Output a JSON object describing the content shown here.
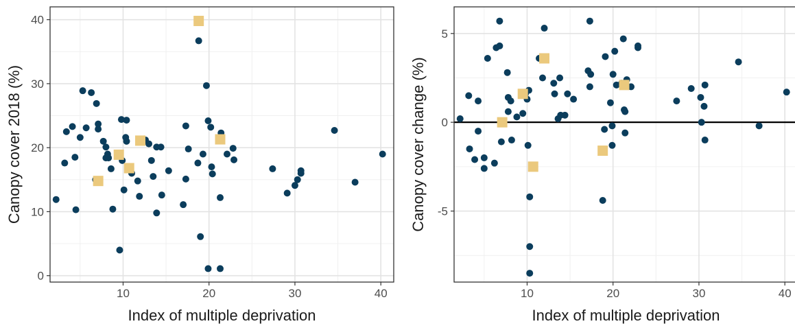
{
  "chart_data": [
    {
      "type": "scatter",
      "xlabel": "Index of multiple deprivation",
      "ylabel": "Canopy cover 2018 (%)",
      "xlim": [
        1.5,
        41.5
      ],
      "ylim": [
        -1,
        42
      ],
      "xticks": [
        10,
        20,
        30,
        40
      ],
      "yticks": [
        0,
        10,
        20,
        30,
        40
      ],
      "grid": true,
      "hline": null,
      "series": [
        {
          "marker": "circle",
          "color": "#0b3d5c",
          "points": [
            [
              2.2,
              11.9
            ],
            [
              3.2,
              17.6
            ],
            [
              3.4,
              22.5
            ],
            [
              4.1,
              23.3
            ],
            [
              4.4,
              18.5
            ],
            [
              4.5,
              10.3
            ],
            [
              5.0,
              21.6
            ],
            [
              5.3,
              28.9
            ],
            [
              5.7,
              23.1
            ],
            [
              6.3,
              28.6
            ],
            [
              6.8,
              15.0
            ],
            [
              6.9,
              26.9
            ],
            [
              7.1,
              23.7
            ],
            [
              7.1,
              22.9
            ],
            [
              7.7,
              21.0
            ],
            [
              8.0,
              20.1
            ],
            [
              8.0,
              18.4
            ],
            [
              8.2,
              19.0
            ],
            [
              8.3,
              18.4
            ],
            [
              8.6,
              16.7
            ],
            [
              8.8,
              10.4
            ],
            [
              9.8,
              24.4
            ],
            [
              9.9,
              18.0
            ],
            [
              10.3,
              21.6
            ],
            [
              10.4,
              21.0
            ],
            [
              10.4,
              24.3
            ],
            [
              10.1,
              13.4
            ],
            [
              9.6,
              4.0
            ],
            [
              11.0,
              16.0
            ],
            [
              11.7,
              14.8
            ],
            [
              11.9,
              12.4
            ],
            [
              12.6,
              21.2
            ],
            [
              13.0,
              20.6
            ],
            [
              13.3,
              18.0
            ],
            [
              13.5,
              15.5
            ],
            [
              13.9,
              9.8
            ],
            [
              13.9,
              20.1
            ],
            [
              14.4,
              20.1
            ],
            [
              14.5,
              12.6
            ],
            [
              15.3,
              16.4
            ],
            [
              17.0,
              11.1
            ],
            [
              17.3,
              23.4
            ],
            [
              17.3,
              15.1
            ],
            [
              17.6,
              19.8
            ],
            [
              18.7,
              17.6
            ],
            [
              18.8,
              36.7
            ],
            [
              19.0,
              6.1
            ],
            [
              19.3,
              19.0
            ],
            [
              19.7,
              29.7
            ],
            [
              19.9,
              24.2
            ],
            [
              20.2,
              23.2
            ],
            [
              20.3,
              17.0
            ],
            [
              20.4,
              15.9
            ],
            [
              19.9,
              1.1
            ],
            [
              21.3,
              1.1
            ],
            [
              21.2,
              21.5
            ],
            [
              21.3,
              12.2
            ],
            [
              21.4,
              22.3
            ],
            [
              22.1,
              19.0
            ],
            [
              22.8,
              19.9
            ],
            [
              22.9,
              18.1
            ],
            [
              27.4,
              16.7
            ],
            [
              29.1,
              12.9
            ],
            [
              30.0,
              14.1
            ],
            [
              30.3,
              15.0
            ],
            [
              30.7,
              16.0
            ],
            [
              30.7,
              16.4
            ],
            [
              34.6,
              22.7
            ],
            [
              37.0,
              14.6
            ],
            [
              40.2,
              19.0
            ]
          ]
        },
        {
          "marker": "square",
          "color": "#ebc97d",
          "points": [
            [
              7.1,
              14.8
            ],
            [
              9.5,
              18.9
            ],
            [
              10.7,
              16.8
            ],
            [
              12.0,
              21.1
            ],
            [
              18.8,
              39.8
            ],
            [
              21.3,
              21.3
            ]
          ]
        }
      ]
    },
    {
      "type": "scatter",
      "xlabel": "Index of multiple deprivation",
      "ylabel": "Canopy cover change (%)",
      "xlim": [
        1.5,
        41.5
      ],
      "ylim": [
        -9.0,
        6.5
      ],
      "xticks": [
        10,
        20,
        30,
        40
      ],
      "yticks": [
        -5,
        0,
        5
      ],
      "grid": true,
      "hline": 0,
      "series": [
        {
          "marker": "circle",
          "color": "#0b3d5c",
          "points": [
            [
              2.2,
              0.2
            ],
            [
              3.2,
              1.5
            ],
            [
              3.3,
              -1.5
            ],
            [
              3.9,
              -2.1
            ],
            [
              4.3,
              -0.5
            ],
            [
              4.3,
              1.2
            ],
            [
              5.0,
              -2.6
            ],
            [
              5.0,
              -2.0
            ],
            [
              5.4,
              3.6
            ],
            [
              6.2,
              -2.3
            ],
            [
              6.4,
              4.2
            ],
            [
              6.8,
              4.3
            ],
            [
              6.8,
              5.7
            ],
            [
              7.0,
              -1.1
            ],
            [
              7.7,
              2.8
            ],
            [
              7.8,
              1.4
            ],
            [
              7.8,
              0.6
            ],
            [
              8.1,
              1.2
            ],
            [
              8.2,
              -1.0
            ],
            [
              8.8,
              0.3
            ],
            [
              9.5,
              0.5
            ],
            [
              9.8,
              1.6
            ],
            [
              10.0,
              1.3
            ],
            [
              10.2,
              1.8
            ],
            [
              10.1,
              -1.3
            ],
            [
              10.3,
              -4.2
            ],
            [
              10.3,
              -7.0
            ],
            [
              10.3,
              -8.5
            ],
            [
              11.4,
              3.6
            ],
            [
              11.8,
              2.5
            ],
            [
              12.0,
              5.3
            ],
            [
              13.1,
              2.2
            ],
            [
              13.2,
              1.6
            ],
            [
              13.6,
              0.2
            ],
            [
              13.8,
              2.5
            ],
            [
              13.9,
              0.4
            ],
            [
              14.4,
              0.4
            ],
            [
              14.7,
              1.6
            ],
            [
              15.4,
              1.3
            ],
            [
              17.1,
              2.9
            ],
            [
              17.3,
              5.7
            ],
            [
              17.4,
              2.7
            ],
            [
              17.3,
              2.0
            ],
            [
              18.8,
              -4.4
            ],
            [
              19.0,
              -0.4
            ],
            [
              19.1,
              3.7
            ],
            [
              19.7,
              1.1
            ],
            [
              19.9,
              -0.2
            ],
            [
              19.9,
              -1.3
            ],
            [
              20.0,
              2.7
            ],
            [
              20.2,
              4.0
            ],
            [
              20.4,
              2.1
            ],
            [
              21.0,
              2.2
            ],
            [
              21.2,
              4.7
            ],
            [
              21.3,
              0.7
            ],
            [
              21.4,
              0.6
            ],
            [
              21.4,
              -0.6
            ],
            [
              21.6,
              2.4
            ],
            [
              22.1,
              2.0
            ],
            [
              22.9,
              4.2
            ],
            [
              22.9,
              4.3
            ],
            [
              27.4,
              1.2
            ],
            [
              29.1,
              1.9
            ],
            [
              30.2,
              1.4
            ],
            [
              30.3,
              0.0
            ],
            [
              30.6,
              0.9
            ],
            [
              30.7,
              2.1
            ],
            [
              30.7,
              -1.0
            ],
            [
              34.6,
              3.4
            ],
            [
              37.0,
              -0.2
            ],
            [
              40.2,
              1.7
            ]
          ]
        },
        {
          "marker": "square",
          "color": "#ebc97d",
          "points": [
            [
              7.1,
              0.0
            ],
            [
              9.5,
              1.6
            ],
            [
              10.7,
              -2.5
            ],
            [
              12.0,
              3.6
            ],
            [
              18.8,
              -1.6
            ],
            [
              21.3,
              2.1
            ]
          ]
        }
      ]
    }
  ]
}
